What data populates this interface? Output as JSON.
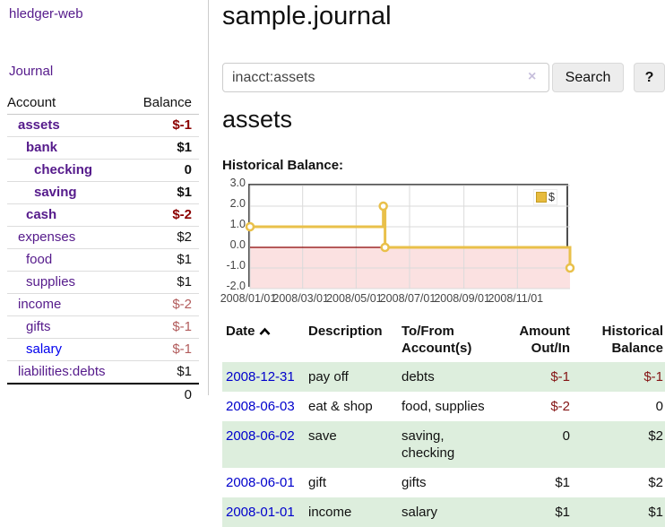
{
  "app": {
    "title": "hledger-web"
  },
  "sidebar": {
    "journal_label": "Journal",
    "table": {
      "account_header": "Account",
      "balance_header": "Balance",
      "rows": [
        {
          "account": "assets",
          "balance": "$-1",
          "depth": 1,
          "bold": true,
          "neg": "strong",
          "link": "purple"
        },
        {
          "account": "bank",
          "balance": "$1",
          "depth": 2,
          "bold": true,
          "neg": "none",
          "link": "purple"
        },
        {
          "account": "checking",
          "balance": "0",
          "depth": 3,
          "bold": true,
          "neg": "none",
          "link": "purple"
        },
        {
          "account": "saving",
          "balance": "$1",
          "depth": 3,
          "bold": true,
          "neg": "none",
          "link": "purple"
        },
        {
          "account": "cash",
          "balance": "$-2",
          "depth": 2,
          "bold": true,
          "neg": "strong",
          "link": "purple"
        },
        {
          "account": "expenses",
          "balance": "$2",
          "depth": 1,
          "bold": false,
          "neg": "none",
          "link": "purple"
        },
        {
          "account": "food",
          "balance": "$1",
          "depth": 2,
          "bold": false,
          "neg": "none",
          "link": "purple"
        },
        {
          "account": "supplies",
          "balance": "$1",
          "depth": 2,
          "bold": false,
          "neg": "none",
          "link": "purple"
        },
        {
          "account": "income",
          "balance": "$-2",
          "depth": 1,
          "bold": false,
          "neg": "soft",
          "link": "purple"
        },
        {
          "account": "gifts",
          "balance": "$-1",
          "depth": 2,
          "bold": false,
          "neg": "soft",
          "link": "purple"
        },
        {
          "account": "salary",
          "balance": "$-1",
          "depth": 2,
          "bold": false,
          "neg": "soft",
          "link": "blue"
        },
        {
          "account": "liabilities:debts",
          "balance": "$1",
          "depth": 1,
          "bold": false,
          "neg": "none",
          "link": "purple"
        }
      ],
      "total": "0"
    }
  },
  "main": {
    "title": "sample.journal",
    "search": {
      "value": "inacct:assets",
      "clear_icon": "×",
      "button_label": "Search",
      "help_label": "?"
    },
    "account_heading": "assets",
    "chart_heading": "Historical Balance:"
  },
  "chart_data": {
    "type": "line",
    "title": "Historical Balance:",
    "x_min": "2008-01-01",
    "x_max": "2008-12-31",
    "ylim": [
      -2,
      3
    ],
    "y_ticks": [
      "3.0",
      "2.0",
      "1.0",
      "0.0",
      "-1.0",
      "-2.0"
    ],
    "x_ticks": [
      "2008/01/01",
      "2008/03/01",
      "2008/05/01",
      "2008/07/01",
      "2008/09/01",
      "2008/11/01"
    ],
    "grid": true,
    "legend_position": "top-right",
    "legend": [
      {
        "label": "$",
        "color": "#e7bb3e"
      }
    ],
    "negative_fill": "#fbe1e1",
    "zero_line_color": "#8b0000",
    "series": [
      {
        "name": "$",
        "color": "#e9c04a",
        "step": true,
        "points": [
          {
            "date": "2008-01-01",
            "value": 1
          },
          {
            "date": "2008-06-01",
            "value": 2
          },
          {
            "date": "2008-06-03",
            "value": 0
          },
          {
            "date": "2008-12-31",
            "value": -1
          }
        ]
      }
    ]
  },
  "register": {
    "headers": {
      "date": "Date",
      "description": "Description",
      "tofrom": "To/From Account(s)",
      "amount": "Amount Out/In",
      "balance": "Historical Balance"
    },
    "rows": [
      {
        "date": "2008-12-31",
        "description": "pay off",
        "tofrom": "debts",
        "amount": "$-1",
        "amount_neg": true,
        "balance": "$-1",
        "balance_neg": true,
        "shaded": true
      },
      {
        "date": "2008-06-03",
        "description": "eat & shop",
        "tofrom": "food, supplies",
        "amount": "$-2",
        "amount_neg": true,
        "balance": "0",
        "balance_neg": false,
        "shaded": false
      },
      {
        "date": "2008-06-02",
        "description": "save",
        "tofrom": "saving, checking",
        "amount": "0",
        "amount_neg": false,
        "balance": "$2",
        "balance_neg": false,
        "shaded": true
      },
      {
        "date": "2008-06-01",
        "description": "gift",
        "tofrom": "gifts",
        "amount": "$1",
        "amount_neg": false,
        "balance": "$2",
        "balance_neg": false,
        "shaded": false
      },
      {
        "date": "2008-01-01",
        "description": "income",
        "tofrom": "salary",
        "amount": "$1",
        "amount_neg": false,
        "balance": "$1",
        "balance_neg": false,
        "shaded": true
      }
    ]
  }
}
